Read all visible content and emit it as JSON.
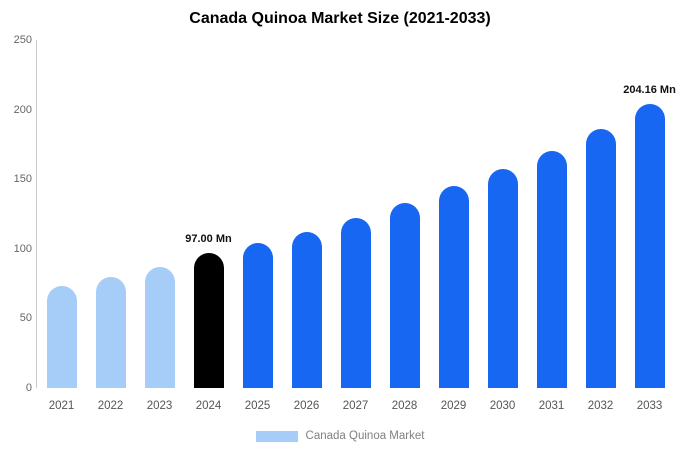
{
  "title": "Canada Quinoa Market Size (2021-2033)",
  "legend": {
    "label": "Canada Quinoa Market",
    "swatch_color": "#a5cdf7"
  },
  "colors": {
    "light_blue": "#a5cdf7",
    "bright_blue": "#1767f2",
    "highlight_black": "#000000",
    "axis_line": "#c9c9c9",
    "tick_text": "#666666"
  },
  "chart_data": {
    "type": "bar",
    "title": "Canada Quinoa Market Size (2021-2033)",
    "xlabel": "",
    "ylabel": "",
    "categories": [
      "2021",
      "2022",
      "2023",
      "2024",
      "2025",
      "2026",
      "2027",
      "2028",
      "2029",
      "2030",
      "2031",
      "2032",
      "2033"
    ],
    "values": [
      73,
      80,
      87,
      97,
      104,
      112,
      122,
      133,
      145,
      157,
      170,
      186,
      204.16
    ],
    "bar_colors": [
      "#a5cdf7",
      "#a5cdf7",
      "#a5cdf7",
      "#000000",
      "#1767f2",
      "#1767f2",
      "#1767f2",
      "#1767f2",
      "#1767f2",
      "#1767f2",
      "#1767f2",
      "#1767f2",
      "#1767f2"
    ],
    "annotations": [
      {
        "index": 3,
        "text": "97.00 Mn"
      },
      {
        "index": 12,
        "text": "204.16 Mn"
      }
    ],
    "ylim": [
      0,
      250
    ],
    "yticks": [
      0,
      50,
      100,
      150,
      200,
      250
    ],
    "grid": false,
    "legend_position": "bottom",
    "legend_entries": [
      "Canada Quinoa Market"
    ]
  }
}
